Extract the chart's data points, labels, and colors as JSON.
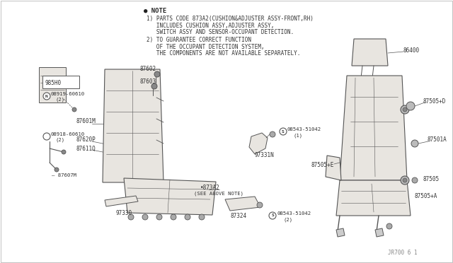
{
  "bg_color": "#ffffff",
  "line_color": "#555555",
  "text_color": "#333333",
  "border_color": "#cccccc",
  "seat_fill": "#e8e5e0",
  "watermark": "JR700 6 1",
  "note_header": "● NOTE",
  "note_lines": [
    "1) PARTS CODE 873A2(CUSHION&ADJUSTER ASSY-FRONT,RH)",
    "   INCLUDES CUSHION ASSY,ADJUSTER ASSY,",
    "   SWITCH ASSY AND SENSOR-OCCUPANT DETECTION.",
    "2) TO GUARANTEE CORRECT FUNCTION",
    "   OF THE OCCUPANT DETECTION SYSTEM,",
    "   THE COMPONENTS ARE NOT AVAILABLE SEPARATELY."
  ],
  "figsize": [
    6.4,
    3.72
  ],
  "dpi": 100
}
